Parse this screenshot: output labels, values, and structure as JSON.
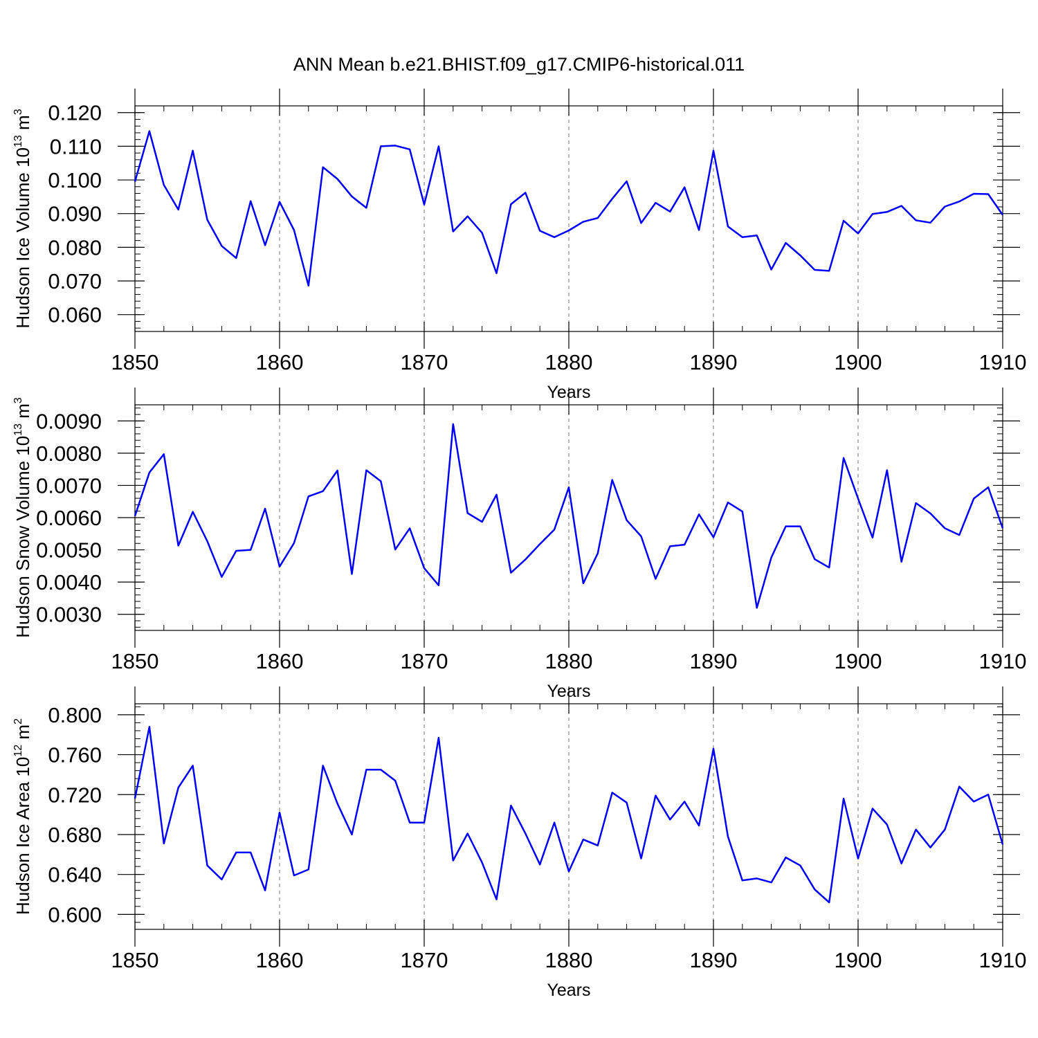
{
  "title": "ANN Mean b.e21.BHIST.f09_g17.CMIP6-historical.011",
  "line_color": "#0000ff",
  "chart_data": [
    {
      "type": "line",
      "ylabel": "Hudson Ice Volume 10",
      "ylabel_sup": "13",
      "ylabel_unit": " m",
      "ylabel_unit_sup": "3",
      "xlabel": "Years",
      "xlim": [
        1850,
        1910
      ],
      "ylim": [
        0.055,
        0.122
      ],
      "yticks": [
        0.06,
        0.07,
        0.08,
        0.09,
        0.1,
        0.11,
        0.12
      ],
      "ytick_labels": [
        "0.060",
        "0.070",
        "0.080",
        "0.090",
        "0.100",
        "0.110",
        "0.120"
      ],
      "xticks": [
        1850,
        1860,
        1870,
        1880,
        1890,
        1900,
        1910
      ],
      "xtick_labels": [
        "1850",
        "1860",
        "1870",
        "1880",
        "1890",
        "1900",
        "1910"
      ],
      "x": [
        1850,
        1851,
        1852,
        1853,
        1854,
        1855,
        1856,
        1857,
        1858,
        1859,
        1860,
        1861,
        1862,
        1863,
        1864,
        1865,
        1866,
        1867,
        1868,
        1869,
        1870,
        1871,
        1872,
        1873,
        1874,
        1875,
        1876,
        1877,
        1878,
        1879,
        1880,
        1881,
        1882,
        1883,
        1884,
        1885,
        1886,
        1887,
        1888,
        1889,
        1890,
        1891,
        1892,
        1893,
        1894,
        1895,
        1896,
        1897,
        1898,
        1899,
        1900,
        1901,
        1902,
        1903,
        1904,
        1905,
        1906,
        1907,
        1908,
        1909,
        1910
      ],
      "values": [
        0.0995,
        0.1145,
        0.0985,
        0.0912,
        0.1087,
        0.0882,
        0.0804,
        0.0768,
        0.0937,
        0.0806,
        0.0935,
        0.0851,
        0.0686,
        0.1038,
        0.1003,
        0.0951,
        0.0917,
        0.11,
        0.1102,
        0.1091,
        0.0927,
        0.11,
        0.0847,
        0.0892,
        0.0843,
        0.0723,
        0.0928,
        0.0962,
        0.0849,
        0.083,
        0.085,
        0.0876,
        0.0887,
        0.0944,
        0.0996,
        0.0872,
        0.0932,
        0.0906,
        0.0978,
        0.0851,
        0.1087,
        0.0862,
        0.083,
        0.0835,
        0.0734,
        0.0813,
        0.0776,
        0.0733,
        0.073,
        0.0879,
        0.0841,
        0.0899,
        0.0905,
        0.0923,
        0.088,
        0.0873,
        0.0921,
        0.0936,
        0.0959,
        0.0958,
        0.0896
      ]
    },
    {
      "type": "line",
      "ylabel": "Hudson Snow Volume 10",
      "ylabel_sup": "13",
      "ylabel_unit": " m",
      "ylabel_unit_sup": "3",
      "xlabel": "Years",
      "xlim": [
        1850,
        1910
      ],
      "ylim": [
        0.0025,
        0.0095
      ],
      "yticks": [
        0.003,
        0.004,
        0.005,
        0.006,
        0.007,
        0.008,
        0.009
      ],
      "ytick_labels": [
        "0.0030",
        "0.0040",
        "0.0050",
        "0.0060",
        "0.0070",
        "0.0080",
        "0.0090"
      ],
      "xticks": [
        1850,
        1860,
        1870,
        1880,
        1890,
        1900,
        1910
      ],
      "xtick_labels": [
        "1850",
        "1860",
        "1870",
        "1880",
        "1890",
        "1900",
        "1910"
      ],
      "x": [
        1850,
        1851,
        1852,
        1853,
        1854,
        1855,
        1856,
        1857,
        1858,
        1859,
        1860,
        1861,
        1862,
        1863,
        1864,
        1865,
        1866,
        1867,
        1868,
        1869,
        1870,
        1871,
        1872,
        1873,
        1874,
        1875,
        1876,
        1877,
        1878,
        1879,
        1880,
        1881,
        1882,
        1883,
        1884,
        1885,
        1886,
        1887,
        1888,
        1889,
        1890,
        1891,
        1892,
        1893,
        1894,
        1895,
        1896,
        1897,
        1898,
        1899,
        1900,
        1901,
        1902,
        1903,
        1904,
        1905,
        1906,
        1907,
        1908,
        1909,
        1910
      ],
      "values": [
        0.00605,
        0.0074,
        0.00797,
        0.00513,
        0.00618,
        0.00527,
        0.00416,
        0.00497,
        0.005,
        0.00628,
        0.00448,
        0.00521,
        0.00666,
        0.00682,
        0.00746,
        0.00425,
        0.00747,
        0.00713,
        0.00501,
        0.00567,
        0.00443,
        0.0039,
        0.0089,
        0.00614,
        0.00587,
        0.00671,
        0.00429,
        0.0047,
        0.00518,
        0.00563,
        0.00694,
        0.00396,
        0.00489,
        0.00717,
        0.00592,
        0.00542,
        0.0041,
        0.00511,
        0.00516,
        0.0061,
        0.00539,
        0.00647,
        0.00619,
        0.0032,
        0.00476,
        0.00573,
        0.00573,
        0.00471,
        0.00445,
        0.00785,
        0.00659,
        0.00538,
        0.00747,
        0.00463,
        0.00645,
        0.00613,
        0.00567,
        0.00546,
        0.00659,
        0.00694,
        0.00567
      ]
    },
    {
      "type": "line",
      "ylabel": "Hudson Ice Area 10",
      "ylabel_sup": "12",
      "ylabel_unit": " m",
      "ylabel_unit_sup": "2",
      "xlabel": "Years",
      "xlim": [
        1850,
        1910
      ],
      "ylim": [
        0.585,
        0.811
      ],
      "yticks": [
        0.6,
        0.64,
        0.68,
        0.72,
        0.76,
        0.8
      ],
      "ytick_labels": [
        "0.600",
        "0.640",
        "0.680",
        "0.720",
        "0.760",
        "0.800"
      ],
      "xticks": [
        1850,
        1860,
        1870,
        1880,
        1890,
        1900,
        1910
      ],
      "xtick_labels": [
        "1850",
        "1860",
        "1870",
        "1880",
        "1890",
        "1900",
        "1910"
      ],
      "x": [
        1850,
        1851,
        1852,
        1853,
        1854,
        1855,
        1856,
        1857,
        1858,
        1859,
        1860,
        1861,
        1862,
        1863,
        1864,
        1865,
        1866,
        1867,
        1868,
        1869,
        1870,
        1871,
        1872,
        1873,
        1874,
        1875,
        1876,
        1877,
        1878,
        1879,
        1880,
        1881,
        1882,
        1883,
        1884,
        1885,
        1886,
        1887,
        1888,
        1889,
        1890,
        1891,
        1892,
        1893,
        1894,
        1895,
        1896,
        1897,
        1898,
        1899,
        1900,
        1901,
        1902,
        1903,
        1904,
        1905,
        1906,
        1907,
        1908,
        1909,
        1910
      ],
      "values": [
        0.716,
        0.788,
        0.671,
        0.727,
        0.749,
        0.649,
        0.635,
        0.662,
        0.662,
        0.624,
        0.702,
        0.639,
        0.645,
        0.749,
        0.711,
        0.68,
        0.745,
        0.745,
        0.734,
        0.692,
        0.692,
        0.777,
        0.654,
        0.681,
        0.652,
        0.615,
        0.709,
        0.681,
        0.65,
        0.692,
        0.643,
        0.675,
        0.669,
        0.722,
        0.712,
        0.656,
        0.719,
        0.695,
        0.713,
        0.689,
        0.766,
        0.678,
        0.634,
        0.636,
        0.632,
        0.657,
        0.649,
        0.625,
        0.612,
        0.716,
        0.656,
        0.706,
        0.69,
        0.651,
        0.685,
        0.667,
        0.685,
        0.728,
        0.713,
        0.72,
        0.67
      ]
    }
  ]
}
